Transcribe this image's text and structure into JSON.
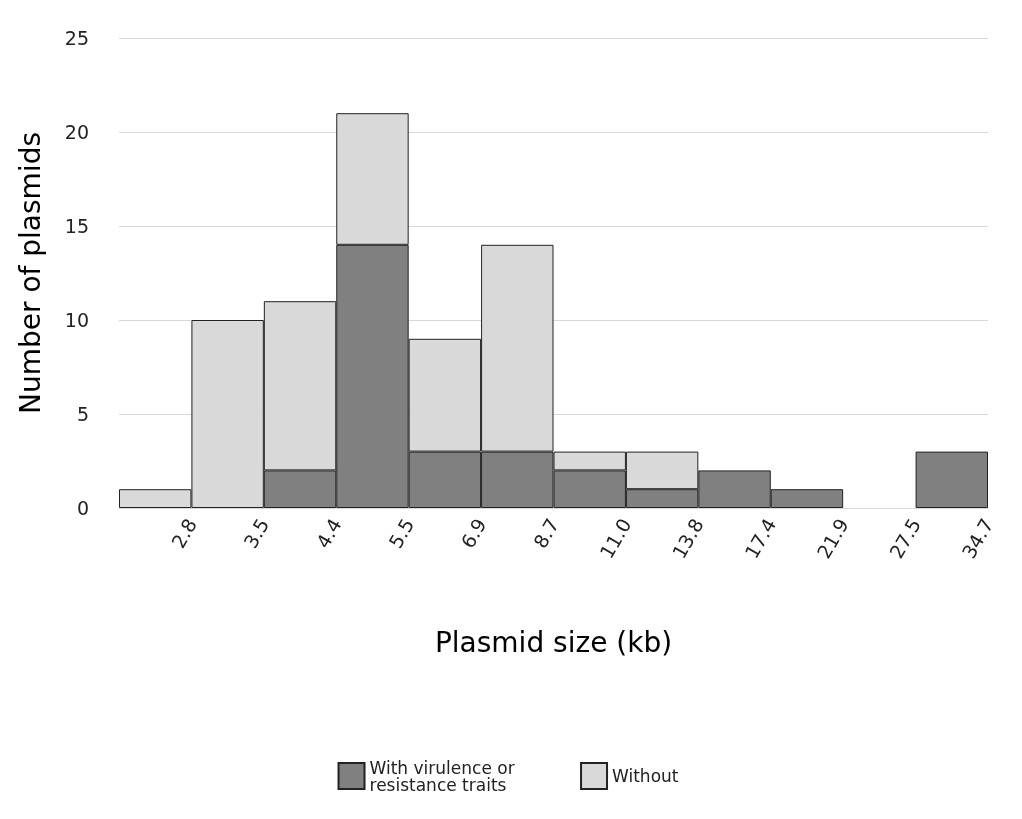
{
  "chart_data": {
    "type": "bar",
    "stacked": true,
    "xlabel": "Plasmid size (kb)",
    "ylabel": "Number of plasmids",
    "categories": [
      "2.8",
      "3.5",
      "4.4",
      "5.5",
      "6.9",
      "8.7",
      "11.0",
      "13.8",
      "17.4",
      "21.9",
      "27.5",
      "34.7"
    ],
    "series": [
      {
        "name": "With virulence or resistance traits",
        "color": "#808080",
        "values": [
          0,
          0,
          2,
          14,
          3,
          3,
          2,
          1,
          2,
          1,
          0,
          3
        ]
      },
      {
        "name": "Without",
        "color": "#d9d9d9",
        "values": [
          1,
          10,
          9,
          7,
          6,
          11,
          1,
          2,
          0,
          0,
          0,
          0
        ]
      }
    ],
    "ylim": [
      0,
      25
    ],
    "yticks": [
      0,
      5,
      10,
      15,
      20,
      25
    ],
    "grid": "y",
    "legend": "bottom"
  }
}
